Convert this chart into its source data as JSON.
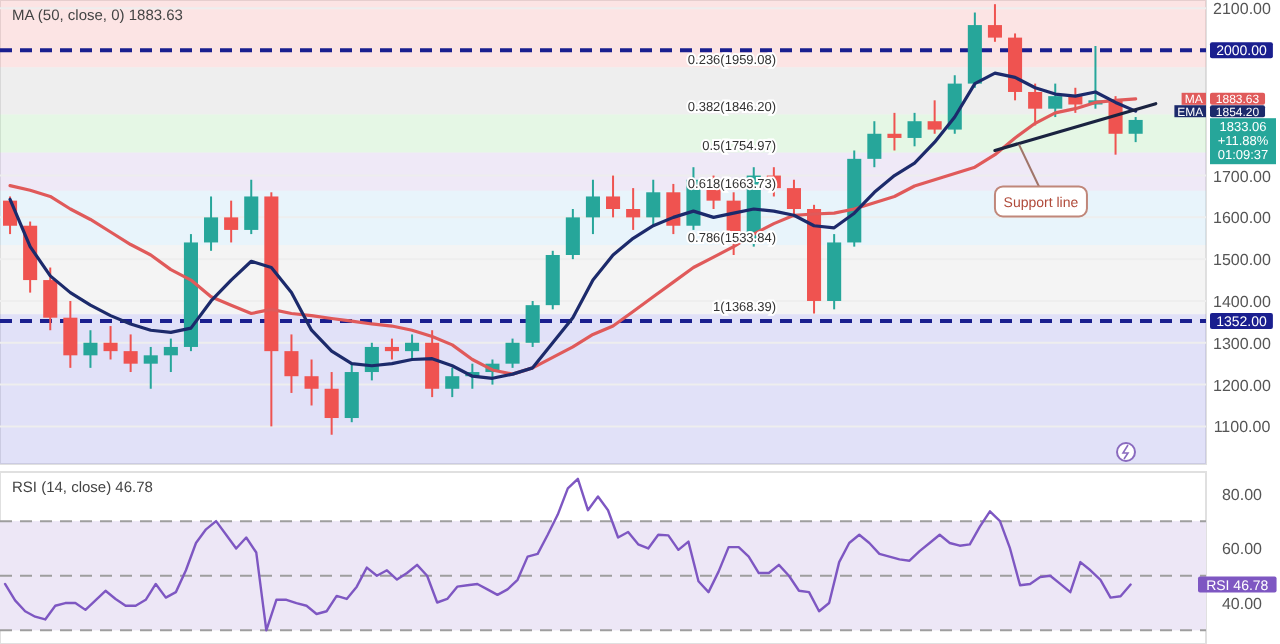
{
  "chart_data": [
    {
      "type": "candlestick",
      "title": "MA (50, close, 0) 1883.63",
      "categories": [
        null,
        null,
        null,
        null,
        null,
        null,
        null,
        null,
        null,
        null,
        null,
        null,
        null,
        null,
        null,
        null,
        null,
        null,
        null,
        null,
        null,
        null,
        null,
        null,
        null,
        null,
        null,
        null,
        null,
        null,
        null,
        null,
        null,
        null,
        null,
        null,
        null,
        null,
        null,
        null,
        null,
        null,
        null,
        null,
        null,
        null,
        null,
        null,
        null,
        null,
        null,
        null,
        null,
        null,
        null,
        null,
        null,
        null,
        null,
        null
      ],
      "ohlc": [
        [
          1640,
          1650,
          1560,
          1580
        ],
        [
          1580,
          1590,
          1420,
          1450
        ],
        [
          1450,
          1480,
          1330,
          1360
        ],
        [
          1360,
          1400,
          1240,
          1270
        ],
        [
          1270,
          1330,
          1240,
          1300
        ],
        [
          1300,
          1340,
          1260,
          1280
        ],
        [
          1280,
          1320,
          1230,
          1250
        ],
        [
          1250,
          1290,
          1190,
          1270
        ],
        [
          1270,
          1310,
          1230,
          1290
        ],
        [
          1290,
          1560,
          1280,
          1540
        ],
        [
          1540,
          1650,
          1520,
          1600
        ],
        [
          1600,
          1640,
          1540,
          1570
        ],
        [
          1570,
          1690,
          1560,
          1650
        ],
        [
          1650,
          1660,
          1100,
          1280
        ],
        [
          1280,
          1320,
          1180,
          1220
        ],
        [
          1220,
          1260,
          1150,
          1190
        ],
        [
          1190,
          1230,
          1080,
          1120
        ],
        [
          1120,
          1250,
          1110,
          1230
        ],
        [
          1230,
          1300,
          1210,
          1290
        ],
        [
          1290,
          1310,
          1260,
          1280
        ],
        [
          1280,
          1320,
          1260,
          1300
        ],
        [
          1300,
          1330,
          1170,
          1190
        ],
        [
          1190,
          1240,
          1170,
          1220
        ],
        [
          1220,
          1250,
          1190,
          1230
        ],
        [
          1230,
          1260,
          1200,
          1250
        ],
        [
          1250,
          1310,
          1240,
          1300
        ],
        [
          1300,
          1400,
          1290,
          1390
        ],
        [
          1390,
          1520,
          1380,
          1510
        ],
        [
          1510,
          1620,
          1500,
          1600
        ],
        [
          1600,
          1690,
          1560,
          1650
        ],
        [
          1650,
          1700,
          1600,
          1620
        ],
        [
          1620,
          1670,
          1570,
          1600
        ],
        [
          1600,
          1690,
          1580,
          1660
        ],
        [
          1660,
          1680,
          1560,
          1580
        ],
        [
          1580,
          1720,
          1570,
          1690
        ],
        [
          1690,
          1700,
          1620,
          1640
        ],
        [
          1640,
          1660,
          1510,
          1540
        ],
        [
          1540,
          1720,
          1530,
          1700
        ],
        [
          1700,
          1720,
          1650,
          1670
        ],
        [
          1670,
          1690,
          1600,
          1620
        ],
        [
          1620,
          1630,
          1370,
          1400
        ],
        [
          1400,
          1560,
          1380,
          1540
        ],
        [
          1540,
          1760,
          1530,
          1740
        ],
        [
          1740,
          1830,
          1720,
          1800
        ],
        [
          1800,
          1850,
          1760,
          1790
        ],
        [
          1790,
          1850,
          1770,
          1830
        ],
        [
          1830,
          1880,
          1800,
          1810
        ],
        [
          1810,
          1940,
          1800,
          1920
        ],
        [
          1920,
          2090,
          1910,
          2060
        ],
        [
          2060,
          2110,
          2020,
          2030
        ],
        [
          2030,
          2040,
          1880,
          1900
        ],
        [
          1900,
          1920,
          1820,
          1860
        ],
        [
          1860,
          1920,
          1840,
          1890
        ],
        [
          1890,
          1910,
          1850,
          1870
        ],
        [
          1870,
          2010,
          1860,
          1880
        ],
        [
          1880,
          1890,
          1750,
          1800
        ],
        [
          1800,
          1840,
          1780,
          1833.06
        ],
        null,
        null,
        null
      ],
      "series": [
        {
          "name": "MA",
          "type": "line",
          "color": "#e05a5a",
          "values": [
            1676,
            1665,
            1650,
            1620,
            1595,
            1565,
            1535,
            1510,
            1475,
            1450,
            1410,
            1390,
            1370,
            1380,
            1370,
            1365,
            1358,
            1352,
            1345,
            1340,
            1330,
            1315,
            1295,
            1260,
            1235,
            1225,
            1240,
            1265,
            1290,
            1320,
            1340,
            1375,
            1410,
            1445,
            1480,
            1505,
            1530,
            1560,
            1585,
            1605,
            1608,
            1610,
            1620,
            1635,
            1650,
            1675,
            1690,
            1705,
            1720,
            1750,
            1790,
            1825,
            1850,
            1860,
            1875,
            1880,
            1883.63,
            null,
            null,
            null
          ]
        },
        {
          "name": "EMA",
          "type": "line",
          "color": "#1c2a6b",
          "values": [
            1643,
            1530,
            1460,
            1420,
            1390,
            1365,
            1345,
            1330,
            1325,
            1335,
            1400,
            1450,
            1495,
            1480,
            1420,
            1330,
            1280,
            1250,
            1245,
            1250,
            1260,
            1262,
            1245,
            1220,
            1215,
            1225,
            1240,
            1300,
            1360,
            1450,
            1510,
            1550,
            1580,
            1600,
            1615,
            1600,
            1610,
            1620,
            1615,
            1605,
            1580,
            1575,
            1610,
            1660,
            1700,
            1730,
            1780,
            1840,
            1920,
            1945,
            1935,
            1910,
            1895,
            1890,
            1900,
            1875,
            1854.2,
            null,
            null,
            null
          ]
        },
        {
          "type": "line",
          "color": "#1a2340",
          "values": [
            null,
            null,
            null,
            null,
            null,
            null,
            null,
            null,
            null,
            null,
            null,
            null,
            null,
            null,
            null,
            null,
            null,
            null,
            null,
            null,
            null,
            null,
            null,
            null,
            null,
            null,
            null,
            null,
            null,
            null,
            null,
            null,
            null,
            null,
            null,
            null,
            null,
            null,
            null,
            null,
            null,
            null,
            null,
            null,
            null,
            null,
            null,
            null,
            null,
            1760,
            null,
            null,
            null,
            null,
            null,
            null,
            null,
            1872,
            null,
            null
          ]
        }
      ],
      "ylim": [
        1010,
        2120
      ],
      "yticks": [
        {
          "value": 1100,
          "label": "1100.00"
        },
        {
          "value": 1200,
          "label": "1200.00"
        },
        {
          "value": 1300,
          "label": "1300.00"
        },
        {
          "value": 1400,
          "label": "1400.00"
        },
        {
          "value": 1500,
          "label": "1500.00"
        },
        {
          "value": 1600,
          "label": "1600.00"
        },
        {
          "value": 1700,
          "label": "1700.00"
        },
        {
          "value": 2100,
          "label": "2100.00"
        }
      ],
      "tick_labels": "y",
      "grid": "y",
      "legend": "right",
      "ref_lines": [
        {
          "axis": "y",
          "value": 2000,
          "label": "2000.00",
          "color": "#1a1f8f",
          "line_style": "dashed"
        },
        {
          "axis": "y",
          "value": 1352,
          "label": "1352.00",
          "color": "#1a1f8f",
          "line_style": "dashed"
        }
      ],
      "bands": [
        {
          "axis": "y",
          "from": 1959.08,
          "to": 2120,
          "color": "#f4a6a6"
        },
        {
          "axis": "y",
          "from": 1846.2,
          "to": 1959.08,
          "label": "0.236(1959.08)",
          "color": "#c8c8c8"
        },
        {
          "axis": "y",
          "from": 1754.97,
          "to": 1846.2,
          "label": "0.382(1846.20)",
          "color": "#a8e6a8"
        },
        {
          "axis": "y",
          "from": 1663.73,
          "to": 1754.97,
          "label": "0.5(1754.97)",
          "color": "#c9b6e6"
        },
        {
          "axis": "y",
          "from": 1533.84,
          "to": 1663.73,
          "label": "0.618(1663.73)",
          "color": "#b3d9f2"
        },
        {
          "axis": "y",
          "from": 1368.39,
          "to": 1533.84,
          "label": "0.786(1533.84)",
          "color": "#dcdcdc"
        },
        {
          "axis": "y",
          "from": 1010,
          "to": 1368.39,
          "label": "1(1368.39)",
          "color": "#9c9ce8"
        }
      ],
      "annotations": [
        "Support line",
        "1883.63",
        "1854.20",
        "1833.06",
        "+11.88%",
        "01:09:37"
      ]
    },
    {
      "type": "line",
      "title": "RSI (14, close) 46.78",
      "categories": [
        null,
        null,
        null,
        null,
        null,
        null,
        null,
        null,
        null,
        null,
        null,
        null,
        null,
        null,
        null,
        null,
        null,
        null,
        null,
        null,
        null,
        null,
        null,
        null,
        null,
        null,
        null,
        null,
        null,
        null,
        null,
        null,
        null,
        null,
        null,
        null,
        null,
        null,
        null,
        null,
        null,
        null,
        null,
        null,
        null,
        null,
        null,
        null,
        null,
        null,
        null,
        null,
        null,
        null,
        null,
        null,
        null,
        null,
        null,
        null,
        null,
        null,
        null,
        null,
        null,
        null,
        null,
        null,
        null,
        null,
        null,
        null,
        null,
        null,
        null,
        null,
        null,
        null,
        null,
        null,
        null,
        null,
        null,
        null,
        null,
        null,
        null,
        null,
        null,
        null,
        null,
        null,
        null,
        null,
        null,
        null,
        null,
        null,
        null,
        null,
        null,
        null,
        null,
        null,
        null,
        null,
        null,
        null,
        null,
        null,
        null,
        null,
        null,
        null,
        null,
        null,
        null,
        null,
        null,
        null
      ],
      "series": [
        {
          "color": "#7e57c2",
          "values": [
            47,
            41,
            37,
            35,
            34,
            39,
            40,
            40,
            37.5,
            41,
            44.5,
            41.5,
            39,
            39,
            41.2,
            47,
            42,
            44,
            52,
            62,
            67,
            70,
            65,
            60,
            64,
            58.5,
            30,
            41.2,
            41.2,
            40,
            39,
            36,
            37,
            42.6,
            41.5,
            46,
            53,
            50,
            52,
            48.6,
            51,
            54,
            50,
            40.2,
            41.5,
            46,
            46.5,
            47,
            45,
            43,
            45,
            48.5,
            57,
            58,
            65,
            72.4,
            82,
            85.5,
            74,
            79,
            74,
            64,
            66,
            61.5,
            60,
            65,
            64.8,
            59.5,
            62.5,
            48,
            44,
            51.5,
            60.5,
            60.5,
            57,
            51,
            51,
            54,
            50,
            44.5,
            44,
            37,
            40,
            55,
            62,
            65,
            62,
            58,
            57,
            56,
            55.5,
            59,
            62,
            65,
            62,
            61,
            61.5,
            68,
            73.6,
            70,
            60,
            46.5,
            47,
            49.5,
            50,
            47,
            44,
            55,
            52,
            48.5,
            42,
            42.5,
            46.78,
            null,
            null,
            null,
            null,
            null,
            null,
            null
          ]
        }
      ],
      "ylim": [
        25,
        88
      ],
      "yticks": [
        {
          "value": 40,
          "label": "40.00"
        },
        {
          "value": 60,
          "label": "60.00"
        },
        {
          "value": 80,
          "label": "80.00"
        }
      ],
      "tick_labels": "y",
      "ref_lines": [
        {
          "axis": "y",
          "value": 70,
          "color": "#9e9e9e",
          "line_style": "dashed"
        },
        {
          "axis": "y",
          "value": 50,
          "color": "#9e9e9e",
          "line_style": "dashed"
        },
        {
          "axis": "y",
          "value": 30,
          "color": "#9e9e9e",
          "line_style": "dashed"
        }
      ],
      "bands": [
        {
          "axis": "y",
          "from": 30,
          "to": 70,
          "color": "#ede7f6"
        }
      ],
      "annotations": [
        "RSI 46.78"
      ]
    }
  ]
}
